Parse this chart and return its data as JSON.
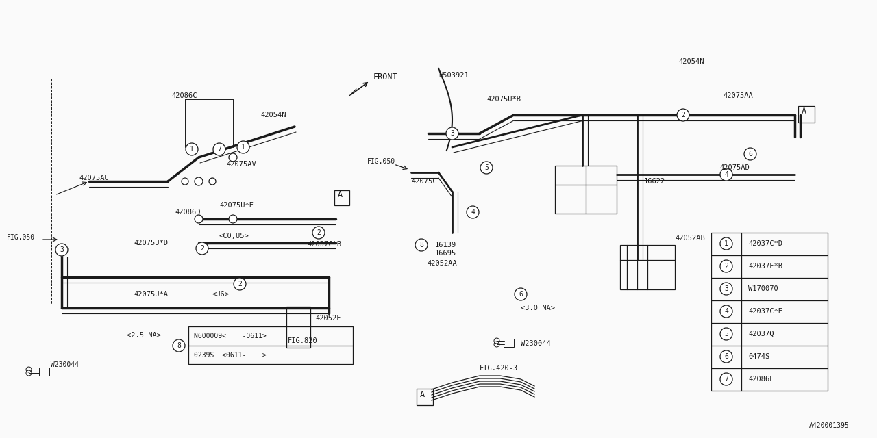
{
  "bg_color": "#FAFAFA",
  "line_color": "#1a1a1a",
  "diagram_id": "A420001395",
  "legend_items": [
    {
      "num": 1,
      "code": "42037C*D"
    },
    {
      "num": 2,
      "code": "42037F*B"
    },
    {
      "num": 3,
      "code": "W170070"
    },
    {
      "num": 4,
      "code": "42037C*E"
    },
    {
      "num": 5,
      "code": "42037Q"
    },
    {
      "num": 6,
      "code": "0474S"
    },
    {
      "num": 7,
      "code": "42086E"
    }
  ],
  "box8_line1": "N600009<    -0611>",
  "box8_line2": "0239S  <0611-    >",
  "label_co_u5": "<C0,U5>",
  "label_u6": "<U6>",
  "label_25na": "<2.5 NA>",
  "label_30na": "<3.0 NA>",
  "label_front": "FRONT",
  "label_fig420": "FIG.420-3",
  "label_w230044": "W230044",
  "font_size": 7.5,
  "line_width": 0.9
}
